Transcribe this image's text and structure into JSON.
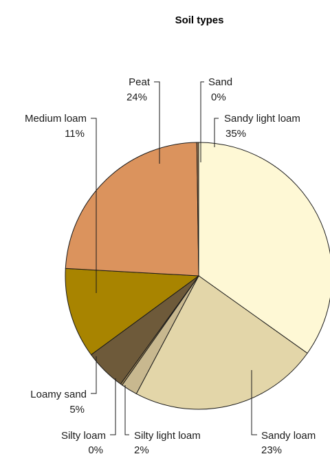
{
  "chart_data": {
    "type": "pie",
    "title": "Soil types",
    "slices": [
      {
        "name": "Sandy light loam",
        "value": 35,
        "label": "35%",
        "color": "#fef8d5"
      },
      {
        "name": "Sandy loam",
        "value": 23,
        "label": "23%",
        "color": "#e3d6a9"
      },
      {
        "name": "Silty light loam",
        "value": 2,
        "label": "2%",
        "color": "#c8b88f"
      },
      {
        "name": "Silty loam",
        "value": 0,
        "label": "0%",
        "color": "#a48a58"
      },
      {
        "name": "Loamy sand",
        "value": 5,
        "label": "5%",
        "color": "#6e5a3a"
      },
      {
        "name": "Medium loam",
        "value": 11,
        "label": "11%",
        "color": "#a88400"
      },
      {
        "name": "Peat",
        "value": 24,
        "label": "24%",
        "color": "#db935d"
      },
      {
        "name": "Sand",
        "value": 0,
        "label": "0%",
        "color": "#a17a54"
      }
    ]
  }
}
